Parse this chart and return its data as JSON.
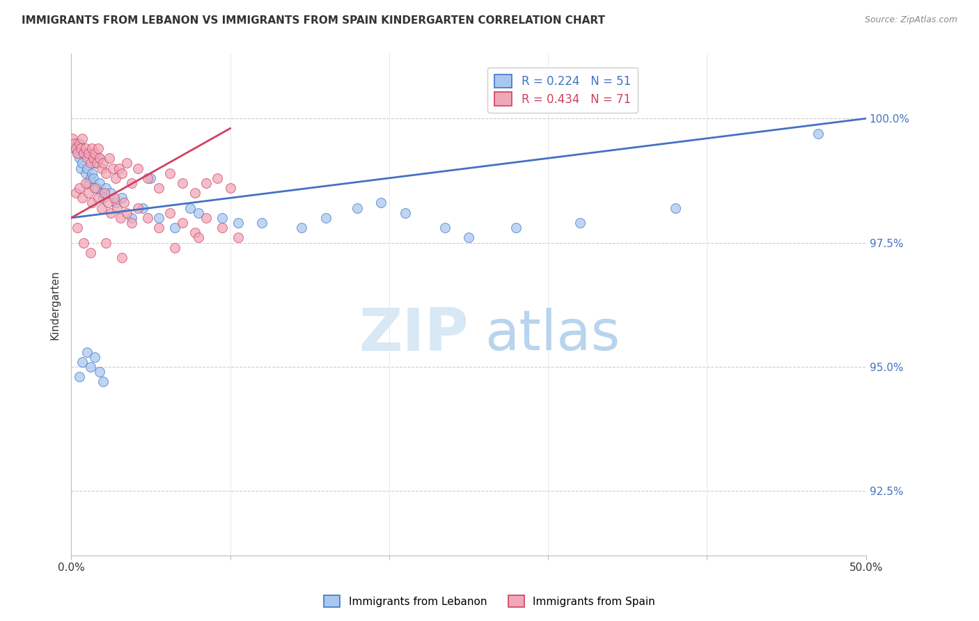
{
  "title": "IMMIGRANTS FROM LEBANON VS IMMIGRANTS FROM SPAIN KINDERGARTEN CORRELATION CHART",
  "source": "Source: ZipAtlas.com",
  "ylabel": "Kindergarten",
  "ytick_values": [
    92.5,
    95.0,
    97.5,
    100.0
  ],
  "xlim": [
    0.0,
    50.0
  ],
  "ylim": [
    91.2,
    101.3
  ],
  "legend_blue_R": "R = 0.224",
  "legend_blue_N": "N = 51",
  "legend_pink_R": "R = 0.434",
  "legend_pink_N": "N = 71",
  "color_blue_fill": "#A8C8F0",
  "color_pink_fill": "#F0A8B8",
  "color_blue_line": "#4472C4",
  "color_pink_line": "#D04060",
  "color_grid": "#CCCCCC",
  "color_right_axis": "#4472C4",
  "blue_points_x": [
    0.2,
    0.3,
    0.4,
    0.5,
    0.6,
    0.7,
    0.8,
    0.9,
    1.0,
    1.1,
    1.2,
    1.3,
    1.4,
    1.5,
    1.6,
    1.7,
    1.8,
    1.9,
    2.0,
    2.2,
    2.5,
    2.8,
    3.2,
    3.8,
    4.5,
    5.0,
    5.5,
    6.5,
    7.5,
    8.0,
    9.5,
    10.5,
    12.0,
    14.5,
    16.0,
    18.0,
    19.5,
    21.0,
    23.5,
    25.0,
    28.0,
    32.0,
    38.0,
    47.0,
    0.5,
    0.7,
    1.0,
    1.2,
    1.5,
    1.8,
    2.0
  ],
  "blue_points_y": [
    99.4,
    99.5,
    99.3,
    99.2,
    99.0,
    99.1,
    99.3,
    98.9,
    99.0,
    98.7,
    98.8,
    98.9,
    98.8,
    99.1,
    98.6,
    99.2,
    98.7,
    98.5,
    98.4,
    98.6,
    98.5,
    98.3,
    98.4,
    98.0,
    98.2,
    98.8,
    98.0,
    97.8,
    98.2,
    98.1,
    98.0,
    97.9,
    97.9,
    97.8,
    98.0,
    98.2,
    98.3,
    98.1,
    97.8,
    97.6,
    97.8,
    97.9,
    98.2,
    99.7,
    94.8,
    95.1,
    95.3,
    95.0,
    95.2,
    94.9,
    94.7
  ],
  "pink_points_x": [
    0.1,
    0.2,
    0.3,
    0.4,
    0.5,
    0.6,
    0.7,
    0.8,
    0.9,
    1.0,
    1.1,
    1.2,
    1.3,
    1.4,
    1.5,
    1.6,
    1.7,
    1.8,
    1.9,
    2.0,
    2.2,
    2.4,
    2.6,
    2.8,
    3.0,
    3.2,
    3.5,
    3.8,
    4.2,
    4.8,
    5.5,
    6.2,
    7.0,
    7.8,
    8.5,
    9.2,
    10.0,
    0.3,
    0.5,
    0.7,
    0.9,
    1.1,
    1.3,
    1.5,
    1.7,
    1.9,
    2.1,
    2.3,
    2.5,
    2.7,
    2.9,
    3.1,
    3.3,
    3.5,
    3.8,
    4.2,
    4.8,
    5.5,
    6.2,
    7.0,
    7.8,
    8.5,
    9.5,
    10.5,
    0.4,
    0.8,
    1.2,
    2.2,
    3.2,
    6.5,
    8.0
  ],
  "pink_points_y": [
    99.6,
    99.5,
    99.4,
    99.3,
    99.5,
    99.4,
    99.6,
    99.3,
    99.4,
    99.2,
    99.3,
    99.1,
    99.4,
    99.2,
    99.3,
    99.1,
    99.4,
    99.2,
    99.0,
    99.1,
    98.9,
    99.2,
    99.0,
    98.8,
    99.0,
    98.9,
    99.1,
    98.7,
    99.0,
    98.8,
    98.6,
    98.9,
    98.7,
    98.5,
    98.7,
    98.8,
    98.6,
    98.5,
    98.6,
    98.4,
    98.7,
    98.5,
    98.3,
    98.6,
    98.4,
    98.2,
    98.5,
    98.3,
    98.1,
    98.4,
    98.2,
    98.0,
    98.3,
    98.1,
    97.9,
    98.2,
    98.0,
    97.8,
    98.1,
    97.9,
    97.7,
    98.0,
    97.8,
    97.6,
    97.8,
    97.5,
    97.3,
    97.5,
    97.2,
    97.4,
    97.6
  ]
}
